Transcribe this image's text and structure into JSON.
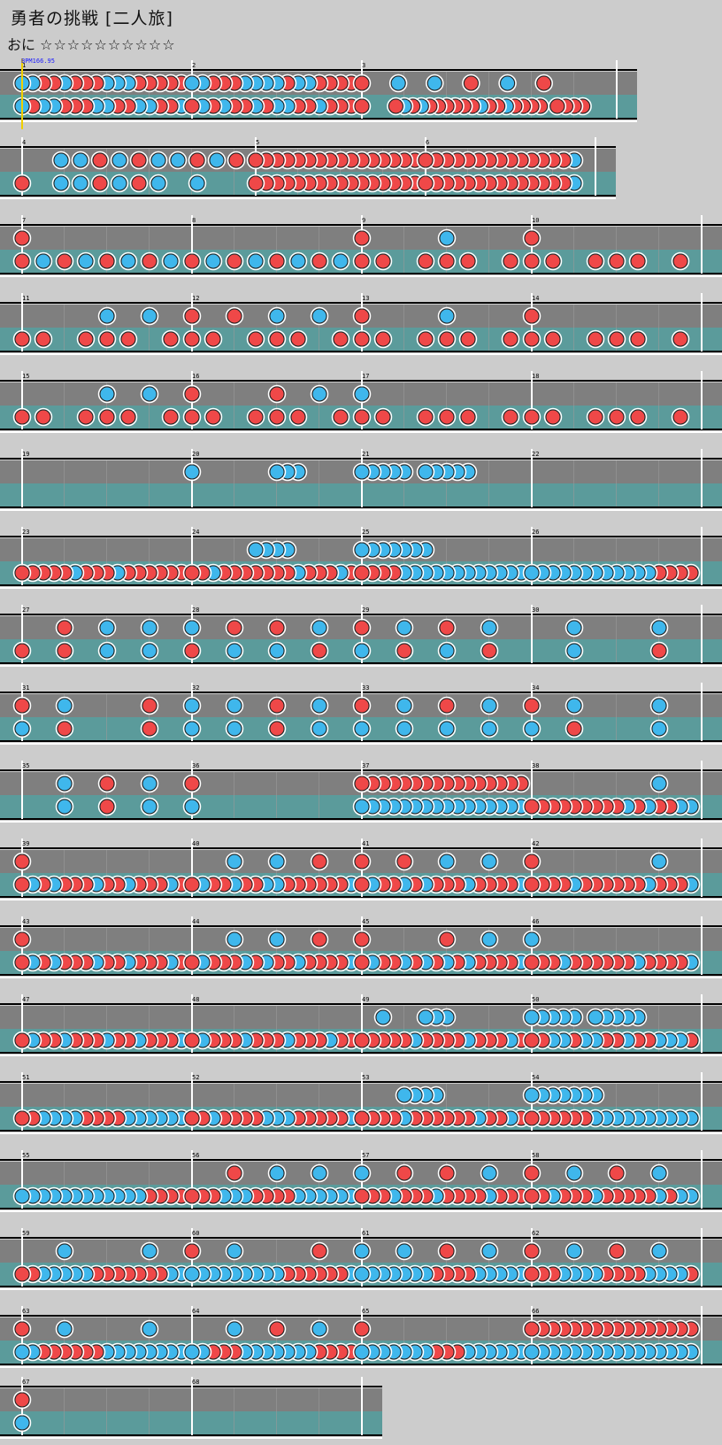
{
  "song_title": "勇者の挑戦 [二人旅]",
  "difficulty_label": "おに",
  "difficulty_stars": "☆☆☆☆☆☆☆☆☆☆",
  "bpm_label": "BPM166.95",
  "colors": {
    "background": "#cccccc",
    "top_lane": "#7f7f7f",
    "bottom_lane": "#5b9b9b",
    "don": "#ef4848",
    "ka": "#3fb7ec",
    "barline": "#ffffff",
    "bpm_text": "#1a1aff",
    "bpm_marker": "#f0d000"
  },
  "rows": [
    {
      "measures": [
        1,
        2,
        3
      ],
      "beats": [
        4,
        4,
        4.5
      ],
      "top": "RBRRBRBBRRRRRRRRRBRRRRBBBBBBBBBBBBBBBBBBRRR|0 |2B 4B 6R 8B 10R",
      "bot": "B R B B R R R B B R R B B R R B R B R B R R B B R B B R R R B R B R R B B R B R R|1 2 3 4 5 6 7 8 9 10 11 12 13 14 15 16 17 18 19 20"
    },
    {
      "measures": [
        4,
        5,
        6
      ],
      "beats": [
        5.5,
        4,
        4
      ],
      "top": "",
      "bot": ""
    },
    {
      "measures": [
        7,
        8,
        9,
        10
      ],
      "beats": [
        4,
        4,
        4,
        4
      ],
      "top": "",
      "bot": ""
    }
  ]
}
